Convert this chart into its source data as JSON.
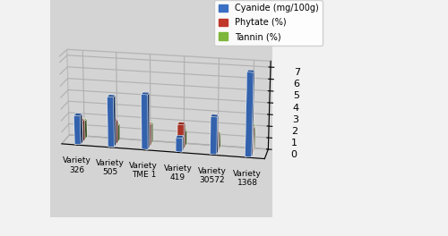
{
  "categories": [
    "Variety\n326",
    "Variety\n505",
    "Variety\nTME 1",
    "Variety\n419",
    "Variety\n30572",
    "Variety\n1368"
  ],
  "cyanide": [
    2.5,
    4.3,
    4.7,
    1.2,
    3.2,
    7.1
  ],
  "phytate": [
    1.8,
    2.0,
    1.9,
    2.1,
    1.6,
    2.2
  ],
  "tannin": [
    1.6,
    1.4,
    1.7,
    1.3,
    1.3,
    2.1
  ],
  "colors": [
    "#3A6FC4",
    "#C0392B",
    "#7DB63A"
  ],
  "legend_labels": [
    "Cyanide (mg/100g)",
    "Phytate (%)",
    "Tannin (%)"
  ],
  "ylim": [
    0,
    7.5
  ],
  "yticks": [
    0,
    1,
    2,
    3,
    4,
    5,
    6,
    7
  ],
  "bg_color": "#D4D4D4",
  "elev": 18,
  "azim": -78
}
